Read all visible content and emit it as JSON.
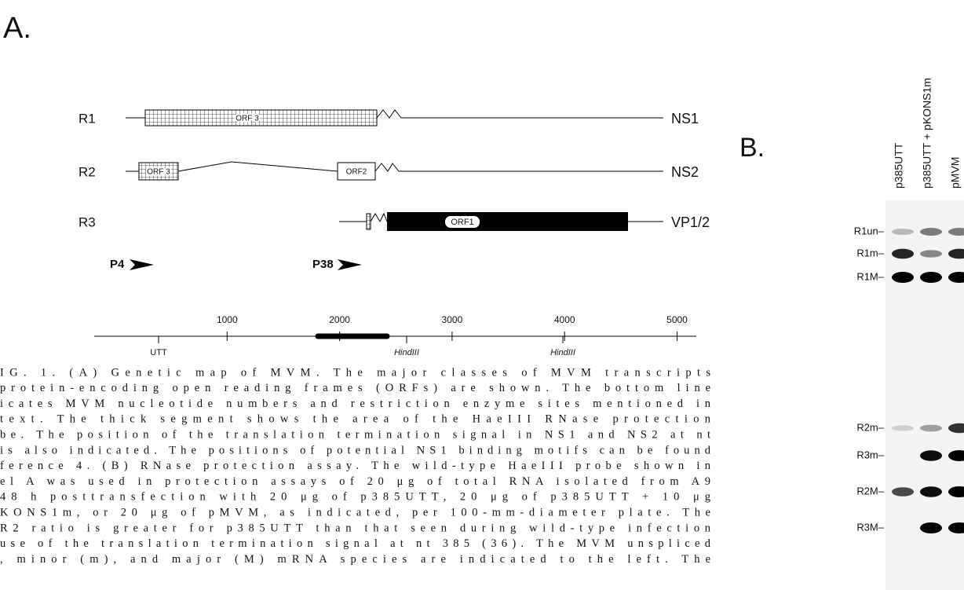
{
  "panel_a": {
    "label": "A.",
    "transcripts": [
      {
        "name": "R1",
        "orfs": [
          "ORF 3"
        ],
        "product": "NS1"
      },
      {
        "name": "R2",
        "orfs": [
          "ORF 3",
          "ORF2"
        ],
        "product": "NS2"
      },
      {
        "name": "R3",
        "orfs": [
          "ORF1"
        ],
        "product": "VP1/2"
      }
    ],
    "promoters": [
      "P4",
      "P38"
    ],
    "scale": {
      "ticks": [
        1000,
        2000,
        3000,
        4000,
        5000
      ],
      "sites": [
        "UTT",
        "HindIII",
        "HindIII"
      ]
    }
  },
  "caption": {
    "lines": [
      "IG. 1. (A) Genetic map of MVM. The major classes of MVM transcripts",
      "protein-encoding open reading frames (ORFs) are shown. The bottom line",
      "icates MVM nucleotide numbers and restriction enzyme sites mentioned in",
      "text. The thick segment shows the area of the HaeIII RNase protection",
      "be. The position of the translation termination signal in NS1 and NS2 at nt",
      "is also indicated. The positions of potential NS1 binding motifs can be found",
      "ference 4. (B) RNase protection assay. The wild-type HaeIII probe shown in",
      "el A was used in protection assays of 20 μg of total RNA isolated from A9",
      "48 h posttransfection with 20 μg of p385UTT, 20 μg of p385UTT + 10 μg",
      "KONS1m, or 20 μg of pMVM, as indicated, per 100-mm-diameter plate. The",
      "R2 ratio is greater for p385UTT than that seen during wild-type infection",
      "use of the translation termination signal at nt 385 (36). The MVM unspliced",
      ", minor (m), and major (M) mRNA species are indicated to the left. The"
    ]
  },
  "panel_b": {
    "label": "B.",
    "lanes": [
      "p385UTT",
      "p385UTT + pKONS1m",
      "pMVM"
    ],
    "bands": [
      "R1un–",
      "R1m–",
      "R1M–",
      "R2m–",
      "R3m–",
      "R2M–",
      "R3M–"
    ]
  }
}
